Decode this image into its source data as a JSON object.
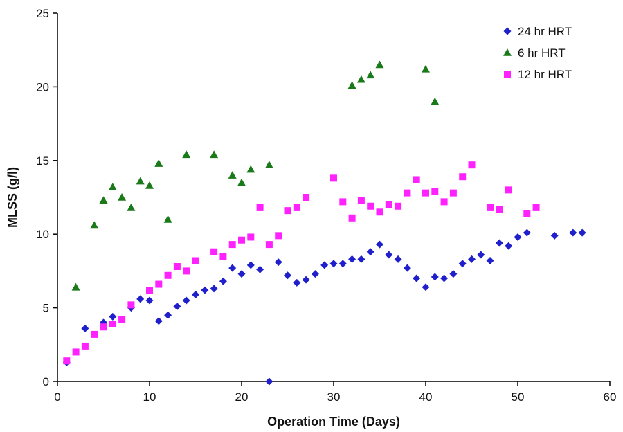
{
  "chart_data": {
    "type": "scatter",
    "xlabel": "Operation Time (Days)",
    "ylabel": "MLSS (g/l)",
    "xlim": [
      0,
      60
    ],
    "ylim": [
      0,
      25
    ],
    "xticks": [
      "0",
      "10",
      "20",
      "30",
      "40",
      "50",
      "60"
    ],
    "yticks": [
      "0",
      "5",
      "10",
      "15",
      "20",
      "25"
    ],
    "grid": false,
    "legend_position": "top-right",
    "series": [
      {
        "name": "24 hr HRT",
        "marker": "diamond",
        "color": "#1f1fcc",
        "points": [
          [
            1,
            1.3
          ],
          [
            3,
            3.6
          ],
          [
            5,
            4.0
          ],
          [
            6,
            4.4
          ],
          [
            8,
            5.0
          ],
          [
            9,
            5.6
          ],
          [
            10,
            5.5
          ],
          [
            11,
            4.1
          ],
          [
            12,
            4.5
          ],
          [
            13,
            5.1
          ],
          [
            14,
            5.5
          ],
          [
            15,
            5.9
          ],
          [
            16,
            6.2
          ],
          [
            17,
            6.3
          ],
          [
            18,
            6.8
          ],
          [
            19,
            7.7
          ],
          [
            20,
            7.3
          ],
          [
            21,
            7.9
          ],
          [
            22,
            7.6
          ],
          [
            23,
            0.0
          ],
          [
            24,
            8.1
          ],
          [
            25,
            7.2
          ],
          [
            26,
            6.7
          ],
          [
            27,
            6.9
          ],
          [
            28,
            7.3
          ],
          [
            29,
            7.9
          ],
          [
            30,
            8.0
          ],
          [
            31,
            8.0
          ],
          [
            32,
            8.3
          ],
          [
            33,
            8.3
          ],
          [
            34,
            8.8
          ],
          [
            35,
            9.3
          ],
          [
            36,
            8.6
          ],
          [
            37,
            8.3
          ],
          [
            38,
            7.7
          ],
          [
            39,
            7.0
          ],
          [
            40,
            6.4
          ],
          [
            41,
            7.1
          ],
          [
            42,
            7.0
          ],
          [
            43,
            7.3
          ],
          [
            44,
            8.0
          ],
          [
            45,
            8.3
          ],
          [
            46,
            8.6
          ],
          [
            47,
            8.2
          ],
          [
            48,
            9.4
          ],
          [
            49,
            9.2
          ],
          [
            50,
            9.8
          ],
          [
            51,
            10.1
          ],
          [
            54,
            9.9
          ],
          [
            56,
            10.1
          ],
          [
            57,
            10.1
          ]
        ]
      },
      {
        "name": "6 hr HRT",
        "marker": "triangle",
        "color": "#1a7a1a",
        "points": [
          [
            2,
            6.4
          ],
          [
            4,
            10.6
          ],
          [
            5,
            12.3
          ],
          [
            6,
            13.2
          ],
          [
            7,
            12.5
          ],
          [
            8,
            11.8
          ],
          [
            9,
            13.6
          ],
          [
            10,
            13.3
          ],
          [
            11,
            14.8
          ],
          [
            12,
            11.0
          ],
          [
            14,
            15.4
          ],
          [
            17,
            15.4
          ],
          [
            19,
            14.0
          ],
          [
            20,
            13.5
          ],
          [
            21,
            14.4
          ],
          [
            23,
            14.7
          ],
          [
            32,
            20.1
          ],
          [
            33,
            20.5
          ],
          [
            34,
            20.8
          ],
          [
            35,
            21.5
          ],
          [
            40,
            21.2
          ],
          [
            41,
            19.0
          ]
        ]
      },
      {
        "name": "12 hr HRT",
        "marker": "square",
        "color": "#ff22ff",
        "points": [
          [
            1,
            1.4
          ],
          [
            2,
            2.0
          ],
          [
            3,
            2.4
          ],
          [
            4,
            3.2
          ],
          [
            5,
            3.7
          ],
          [
            6,
            3.9
          ],
          [
            7,
            4.2
          ],
          [
            8,
            5.2
          ],
          [
            10,
            6.2
          ],
          [
            11,
            6.6
          ],
          [
            12,
            7.2
          ],
          [
            13,
            7.8
          ],
          [
            14,
            7.5
          ],
          [
            15,
            8.2
          ],
          [
            17,
            8.8
          ],
          [
            18,
            8.5
          ],
          [
            19,
            9.3
          ],
          [
            20,
            9.6
          ],
          [
            21,
            9.8
          ],
          [
            22,
            11.8
          ],
          [
            23,
            9.3
          ],
          [
            24,
            9.9
          ],
          [
            25,
            11.6
          ],
          [
            26,
            11.8
          ],
          [
            27,
            12.5
          ],
          [
            30,
            13.8
          ],
          [
            31,
            12.2
          ],
          [
            32,
            11.1
          ],
          [
            33,
            12.3
          ],
          [
            34,
            11.9
          ],
          [
            35,
            11.5
          ],
          [
            36,
            12.0
          ],
          [
            37,
            11.9
          ],
          [
            38,
            12.8
          ],
          [
            39,
            13.7
          ],
          [
            40,
            12.8
          ],
          [
            41,
            12.9
          ],
          [
            42,
            12.2
          ],
          [
            43,
            12.8
          ],
          [
            44,
            13.9
          ],
          [
            45,
            14.7
          ],
          [
            47,
            11.8
          ],
          [
            48,
            11.7
          ],
          [
            49,
            13.0
          ],
          [
            51,
            11.4
          ],
          [
            52,
            11.8
          ]
        ]
      }
    ]
  }
}
